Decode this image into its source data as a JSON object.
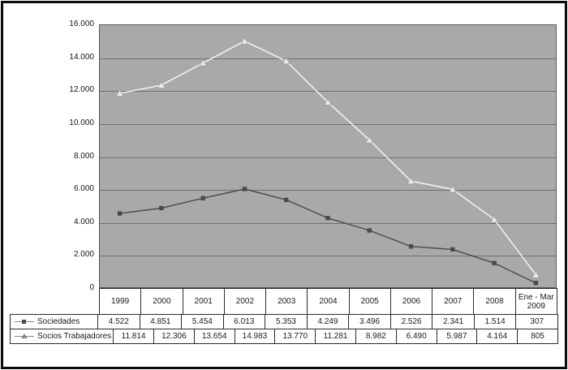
{
  "chart_data": {
    "type": "line",
    "title": "",
    "categories": [
      "1999",
      "2000",
      "2001",
      "2002",
      "2003",
      "2004",
      "2005",
      "2006",
      "2007",
      "2008",
      "Ene - Mar 2009"
    ],
    "series": [
      {
        "name": "Sociedades",
        "marker": "square",
        "line_color": "#4a4a4a",
        "marker_color": "#4a4a4a",
        "values": [
          4522,
          4851,
          5454,
          6013,
          5353,
          4249,
          3496,
          2526,
          2341,
          1514,
          307
        ],
        "value_labels": [
          "4.522",
          "4.851",
          "5.454",
          "6.013",
          "5.353",
          "4.249",
          "3.496",
          "2.526",
          "2.341",
          "1.514",
          "307"
        ]
      },
      {
        "name": "Socios Trabajadores",
        "marker": "triangle",
        "line_color": "#f0f0f0",
        "marker_color": "#ececec",
        "values": [
          11814,
          12306,
          13654,
          14983,
          13770,
          11281,
          8982,
          6490,
          5987,
          4164,
          805
        ],
        "value_labels": [
          "11.814",
          "12.306",
          "13.654",
          "14.983",
          "13.770",
          "11.281",
          "8.982",
          "6.490",
          "5.987",
          "4.164",
          "805"
        ]
      }
    ],
    "y_axis": {
      "min": 0,
      "max": 16000,
      "step": 2000,
      "tick_labels": [
        "16.000",
        "14.000",
        "12.000",
        "10.000",
        "8.000",
        "6.000",
        "4.000",
        "2.000",
        "0"
      ]
    },
    "grid": true,
    "legend_position": "left-of-data-table",
    "plot_background": "#a9a9a9",
    "gridline_color": "#6e6e6e",
    "frame_color": "#0b0b0b"
  }
}
